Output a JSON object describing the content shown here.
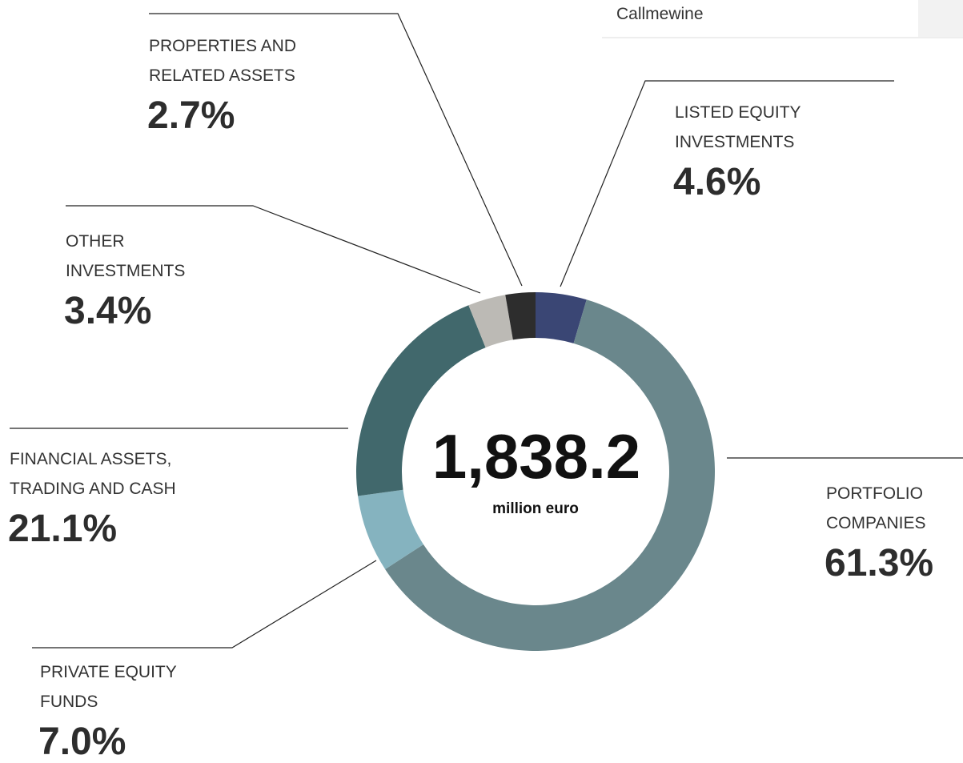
{
  "header_text": "Callmewine",
  "chart_data": {
    "type": "donut",
    "categories": [
      "LISTED EQUITY INVESTMENTS",
      "PORTFOLIO COMPANIES",
      "PRIVATE EQUITY FUNDS",
      "FINANCIAL ASSETS, TRADING AND CASH",
      "OTHER INVESTMENTS",
      "PROPERTIES AND RELATED ASSETS"
    ],
    "values": [
      4.6,
      61.3,
      7.0,
      21.1,
      3.4,
      2.7
    ],
    "value_labels": [
      "4.6%",
      "61.3%",
      "7.0%",
      "21.1%",
      "3.4%",
      "2.7%"
    ],
    "colors": [
      "#3a4674",
      "#6a878c",
      "#85b3bf",
      "#41686c",
      "#bcbab5",
      "#2d2d2d"
    ],
    "center_label": "1,838.2",
    "center_sublabel": "million euro"
  }
}
